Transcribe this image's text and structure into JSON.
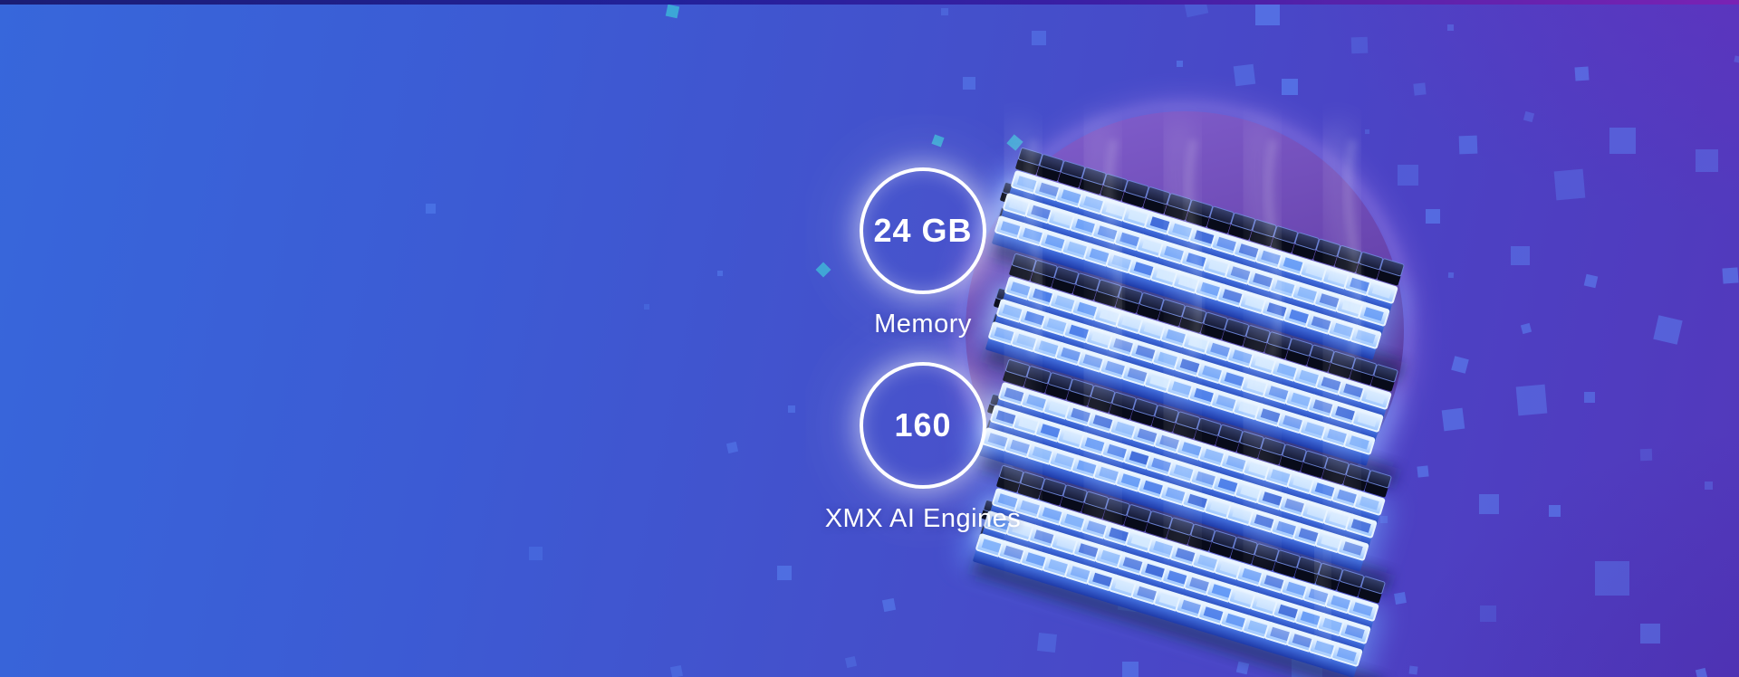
{
  "hero": {
    "stats": [
      {
        "value": "24 GB",
        "label": "Memory"
      },
      {
        "value": "160",
        "label": "XMX AI Engines"
      }
    ],
    "illustration": {
      "name": "3d-ai-cube-matrix-icon"
    },
    "colors": {
      "background_left": "#3767db",
      "background_right": "#5338bb",
      "strip_left": "#1b1d74",
      "strip_right": "#7a22b4",
      "circle_top": "#8260ce",
      "circle_bottom": "#4e2b90",
      "circle_rim_glow": "#b48cf0",
      "square_tint": "#6096ff",
      "teal_accent": "#3cc0d8",
      "cube_glow": "#cfe8ff",
      "cube_face": "#4f82f2",
      "dark_cube": "#080b1a",
      "text": "#ffffff"
    }
  }
}
